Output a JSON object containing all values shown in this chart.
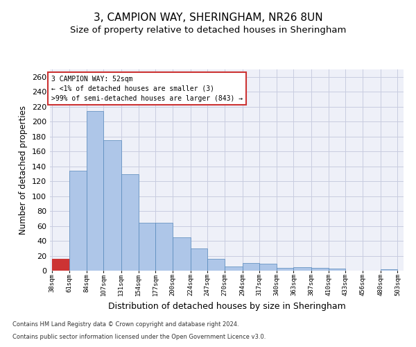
{
  "title": "3, CAMPION WAY, SHERINGHAM, NR26 8UN",
  "subtitle": "Size of property relative to detached houses in Sheringham",
  "xlabel": "Distribution of detached houses by size in Sheringham",
  "ylabel": "Number of detached properties",
  "footnote1": "Contains HM Land Registry data © Crown copyright and database right 2024.",
  "footnote2": "Contains public sector information licensed under the Open Government Licence v3.0.",
  "annotation_title": "3 CAMPION WAY: 52sqm",
  "annotation_line1": "← <1% of detached houses are smaller (3)",
  "annotation_line2": ">99% of semi-detached houses are larger (843) →",
  "property_size": 52,
  "bar_left_edges": [
    38,
    61,
    84,
    107,
    131,
    154,
    177,
    200,
    224,
    247,
    270,
    294,
    317,
    340,
    363,
    387,
    410,
    433,
    456,
    480
  ],
  "bar_widths": [
    23,
    23,
    23,
    24,
    23,
    23,
    23,
    24,
    23,
    23,
    24,
    23,
    23,
    23,
    24,
    23,
    23,
    23,
    24,
    23
  ],
  "bar_heights": [
    16,
    134,
    214,
    175,
    129,
    64,
    64,
    45,
    30,
    16,
    6,
    10,
    9,
    4,
    5,
    4,
    3,
    0,
    0,
    2
  ],
  "bar_color": "#aec6e8",
  "bar_edge_color": "#5588bb",
  "highlight_bar_color": "#cc3333",
  "highlight_bar_edge_color": "#cc3333",
  "red_line_x": 52,
  "ylim": [
    0,
    270
  ],
  "yticks": [
    0,
    20,
    40,
    60,
    80,
    100,
    120,
    140,
    160,
    180,
    200,
    220,
    240,
    260
  ],
  "bg_color": "#eef0f8",
  "grid_color": "#c8cce0",
  "box_color": "#cc3333",
  "title_fontsize": 11,
  "subtitle_fontsize": 9.5,
  "xlabel_fontsize": 9,
  "ylabel_fontsize": 8.5,
  "tick_labels": [
    "38sqm",
    "61sqm",
    "84sqm",
    "107sqm",
    "131sqm",
    "154sqm",
    "177sqm",
    "200sqm",
    "224sqm",
    "247sqm",
    "270sqm",
    "294sqm",
    "317sqm",
    "340sqm",
    "363sqm",
    "387sqm",
    "410sqm",
    "433sqm",
    "456sqm",
    "480sqm",
    "503sqm"
  ]
}
